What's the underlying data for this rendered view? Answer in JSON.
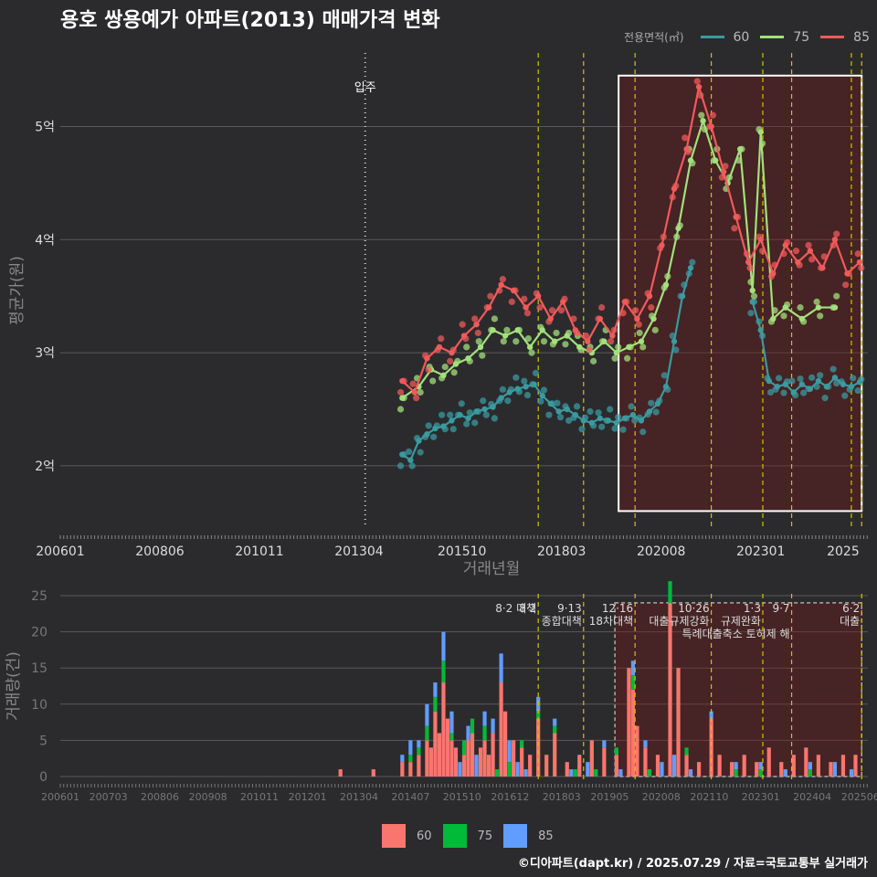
{
  "header": {
    "title": "용호 쌍용예가 아파트(2013) 매매가격 변화"
  },
  "legend_top": {
    "title": "전용면적(㎡)",
    "items": [
      {
        "label": "60",
        "color": "#3a9aa0"
      },
      {
        "label": "75",
        "color": "#a3e07c"
      },
      {
        "label": "85",
        "color": "#f05a5a"
      }
    ]
  },
  "legend_bottom": {
    "items": [
      {
        "label": "60",
        "color": "#f8766d"
      },
      {
        "label": "75",
        "color": "#00ba38"
      },
      {
        "label": "85",
        "color": "#619cff"
      }
    ]
  },
  "footer": {
    "text": "©디아파트(dapt.kr) / 2025.07.29 / 자료=국토교통부 실거래가"
  },
  "chart_data": [
    {
      "type": "line",
      "xlabel": "거래년월",
      "ylabel": "평균가(원)",
      "x_ticks": [
        "200601",
        "200806",
        "201011",
        "201304",
        "201510",
        "201803",
        "202008",
        "202301",
        "2025"
      ],
      "y_ticks": [
        {
          "value": 2.0,
          "label": "2억"
        },
        {
          "value": 3.0,
          "label": "3억"
        },
        {
          "value": 4.0,
          "label": "4억"
        },
        {
          "value": 5.0,
          "label": "5억"
        }
      ],
      "ylim": [
        1.45,
        5.65
      ],
      "xlim": [
        2006.0,
        2025.6
      ],
      "move_in": {
        "x": 2013.4,
        "label": "입주"
      },
      "policy_lines": [
        2017.6,
        2018.7,
        2019.95,
        2021.8,
        2023.05,
        2023.75,
        2025.2,
        2025.45
      ],
      "highlight": {
        "x": [
          2019.55,
          2025.45
        ],
        "y": [
          1.6,
          5.45
        ]
      },
      "series": [
        {
          "name": "60",
          "color": "#3a9aa0",
          "x": [
            2014.3,
            2014.5,
            2014.7,
            2014.9,
            2015.1,
            2015.3,
            2015.5,
            2015.7,
            2015.9,
            2016.1,
            2016.3,
            2016.5,
            2016.7,
            2016.9,
            2017.1,
            2017.3,
            2017.5,
            2017.7,
            2017.9,
            2018.1,
            2018.3,
            2018.5,
            2018.7,
            2018.9,
            2019.1,
            2019.3,
            2019.5,
            2019.7,
            2019.9,
            2020.1,
            2020.3,
            2020.5,
            2020.7,
            2020.9,
            2021.1,
            2021.3
          ],
          "y": [
            2.1,
            2.05,
            2.22,
            2.28,
            2.33,
            2.35,
            2.4,
            2.45,
            2.42,
            2.48,
            2.5,
            2.52,
            2.6,
            2.65,
            2.68,
            2.7,
            2.72,
            2.62,
            2.55,
            2.48,
            2.5,
            2.45,
            2.4,
            2.38,
            2.42,
            2.4,
            2.38,
            2.42,
            2.45,
            2.4,
            2.48,
            2.55,
            2.7,
            3.1,
            3.5,
            3.75
          ]
        },
        {
          "name": "60b",
          "color": "#3a9aa0",
          "x": [
            2022.8,
            2023.0,
            2023.2,
            2023.4,
            2023.6,
            2023.8,
            2024.0,
            2024.2,
            2024.4,
            2024.6,
            2024.8,
            2025.0,
            2025.2,
            2025.4
          ],
          "y": [
            3.45,
            3.2,
            2.75,
            2.7,
            2.72,
            2.65,
            2.72,
            2.68,
            2.75,
            2.7,
            2.78,
            2.72,
            2.7,
            2.74
          ]
        },
        {
          "name": "75",
          "color": "#a3e07c",
          "x": [
            2014.3,
            2014.7,
            2015.0,
            2015.3,
            2015.6,
            2015.9,
            2016.2,
            2016.5,
            2016.8,
            2017.1,
            2017.4,
            2017.7,
            2018.0,
            2018.3,
            2018.6,
            2018.9,
            2019.2,
            2019.5,
            2019.8,
            2020.1,
            2020.4,
            2020.7,
            2021.0,
            2021.3,
            2021.6,
            2021.9,
            2022.2,
            2022.5,
            2022.8,
            2023.0,
            2023.3,
            2023.6,
            2024.0,
            2024.4,
            2024.8
          ],
          "y": [
            2.6,
            2.7,
            2.85,
            2.8,
            2.9,
            2.95,
            3.05,
            3.2,
            3.15,
            3.2,
            3.05,
            3.2,
            3.1,
            3.15,
            3.05,
            3.0,
            3.1,
            3.0,
            3.05,
            3.1,
            3.3,
            3.6,
            4.1,
            4.7,
            5.05,
            4.7,
            4.5,
            4.8,
            3.55,
            4.95,
            3.3,
            3.4,
            3.3,
            3.4,
            3.4
          ]
        },
        {
          "name": "85",
          "color": "#f05a5a",
          "x": [
            2014.3,
            2014.6,
            2014.9,
            2015.2,
            2015.5,
            2015.8,
            2016.1,
            2016.4,
            2016.7,
            2017.0,
            2017.3,
            2017.6,
            2017.9,
            2018.2,
            2018.5,
            2018.8,
            2019.1,
            2019.4,
            2019.7,
            2020.0,
            2020.3,
            2020.6,
            2020.9,
            2021.2,
            2021.5,
            2021.8,
            2022.1,
            2022.4,
            2022.7,
            2023.0,
            2023.3,
            2023.6,
            2023.9,
            2024.2,
            2024.5,
            2024.8,
            2025.1,
            2025.4
          ],
          "y": [
            2.75,
            2.65,
            2.95,
            3.05,
            3.0,
            3.15,
            3.25,
            3.4,
            3.6,
            3.55,
            3.4,
            3.5,
            3.3,
            3.45,
            3.2,
            3.1,
            3.3,
            3.15,
            3.45,
            3.3,
            3.5,
            3.95,
            4.45,
            4.8,
            5.35,
            5.0,
            4.6,
            4.2,
            3.8,
            4.0,
            3.7,
            3.95,
            3.8,
            3.9,
            3.75,
            4.0,
            3.7,
            3.8
          ]
        }
      ]
    },
    {
      "type": "bar",
      "xlabel": "거래년월",
      "ylabel": "거래량(건)",
      "x_ticks": [
        "200601",
        "200703",
        "200806",
        "200908",
        "201011",
        "201201",
        "201304",
        "201407",
        "201510",
        "201612",
        "201803",
        "201905",
        "202008",
        "202110",
        "202301",
        "202404",
        "202506"
      ],
      "y_ticks": [
        0,
        5,
        10,
        15,
        20,
        25
      ],
      "ylim": [
        0,
        25
      ],
      "xlim": [
        2006.0,
        2025.6
      ],
      "highlight_ymax": 24,
      "annotations": [
        {
          "x": 2017.6,
          "date": "8·2",
          "text": "8·2 대책",
          "lines": 1
        },
        {
          "x": 2018.7,
          "date": "9·13",
          "text": "종합대책",
          "lines": 2
        },
        {
          "x": 2019.95,
          "date": "12·16",
          "text": "18차대책",
          "lines": 2
        },
        {
          "x": 2021.8,
          "date": "10·26",
          "text": "대출규제강화",
          "lines": 2
        },
        {
          "x": 2023.05,
          "date": "1·3",
          "text": "규제완화",
          "lines": 2
        },
        {
          "x": 2023.75,
          "date": "9·7",
          "text": "특례대출축소 토허제 해",
          "lines": 3
        },
        {
          "x": 2025.45,
          "date": "6·2",
          "text": "대출",
          "lines": 2
        }
      ],
      "series": [
        {
          "name": "60",
          "color": "#f8766d",
          "x": [
            2012.8,
            2013.6,
            2014.3,
            2014.5,
            2014.7,
            2014.9,
            2015.0,
            2015.1,
            2015.2,
            2015.3,
            2015.4,
            2015.5,
            2015.6,
            2015.8,
            2015.9,
            2016.0,
            2016.2,
            2016.3,
            2016.4,
            2016.5,
            2016.7,
            2016.8,
            2017.0,
            2017.2,
            2017.4,
            2017.6,
            2017.8,
            2018.0,
            2018.3,
            2018.6,
            2018.9,
            2019.2,
            2019.5,
            2019.8,
            2019.9,
            2020.0,
            2020.2,
            2020.5,
            2020.8,
            2021.0,
            2021.2,
            2021.5,
            2021.8,
            2022.0,
            2022.3,
            2022.6,
            2022.9,
            2023.2,
            2023.5,
            2023.8,
            2024.1,
            2024.4,
            2024.7,
            2025.0,
            2025.3
          ],
          "values": [
            1,
            1,
            2,
            2,
            3,
            5,
            4,
            9,
            6,
            13,
            8,
            5,
            4,
            3,
            5,
            6,
            4,
            5,
            3,
            6,
            13,
            9,
            5,
            4,
            3,
            8,
            3,
            6,
            2,
            3,
            5,
            4,
            3,
            15,
            12,
            7,
            4,
            3,
            24,
            15,
            3,
            2,
            8,
            3,
            2,
            3,
            2,
            4,
            2,
            3,
            4,
            3,
            2,
            3,
            3
          ]
        },
        {
          "name": "75",
          "color": "#00ba38",
          "x": [
            2014.3,
            2014.5,
            2014.7,
            2014.9,
            2015.1,
            2015.3,
            2015.5,
            2015.8,
            2016.0,
            2016.3,
            2016.6,
            2016.9,
            2017.2,
            2017.6,
            2018.0,
            2018.5,
            2019.0,
            2019.5,
            2019.9,
            2020.3,
            2020.8,
            2021.2,
            2021.8,
            2022.4,
            2023.0,
            2023.6,
            2024.2,
            2024.8
          ],
          "values": [
            0,
            1,
            1,
            2,
            2,
            3,
            1,
            2,
            2,
            2,
            1,
            2,
            1,
            1,
            1,
            1,
            1,
            1,
            2,
            1,
            3,
            1,
            0,
            1,
            1,
            0,
            1,
            0
          ]
        },
        {
          "name": "85",
          "color": "#619cff",
          "x": [
            2014.3,
            2014.5,
            2014.7,
            2014.9,
            2015.1,
            2015.3,
            2015.5,
            2015.7,
            2015.9,
            2016.1,
            2016.3,
            2016.5,
            2016.7,
            2016.9,
            2017.1,
            2017.3,
            2017.6,
            2018.0,
            2018.4,
            2018.8,
            2019.2,
            2019.6,
            2019.9,
            2020.2,
            2020.6,
            2020.9,
            2021.3,
            2021.8,
            2022.4,
            2023.0,
            2023.6,
            2024.2,
            2024.8,
            2025.2
          ],
          "values": [
            1,
            2,
            1,
            3,
            2,
            4,
            3,
            2,
            2,
            3,
            2,
            2,
            4,
            3,
            2,
            1,
            2,
            1,
            1,
            2,
            1,
            1,
            2,
            1,
            2,
            3,
            1,
            1,
            1,
            1,
            1,
            1,
            2,
            1
          ]
        }
      ]
    }
  ]
}
